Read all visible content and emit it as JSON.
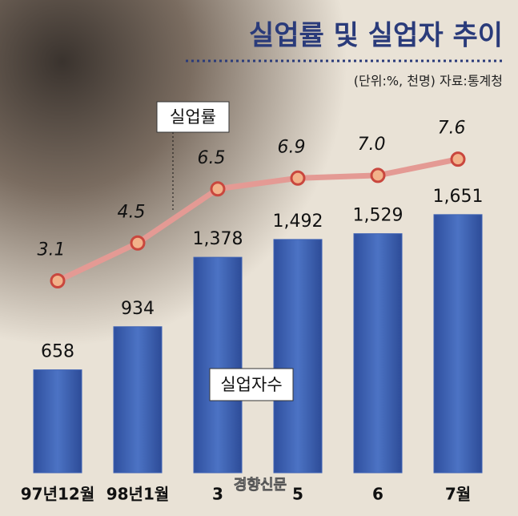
{
  "chart_data": {
    "type": "bar",
    "title": "실업률 및 실업자 추이",
    "subtitle": "(단위:%, 천명) 자료:통계청",
    "source_mark": "경향신문",
    "categories": [
      "97년12월",
      "98년1월",
      "3",
      "5",
      "6",
      "7월"
    ],
    "series": [
      {
        "name": "실업자수",
        "type": "bar",
        "color": "#3f63b5",
        "values": [
          658,
          934,
          1378,
          1492,
          1529,
          1651
        ],
        "value_labels": [
          "658",
          "934",
          "1,378",
          "1,492",
          "1,529",
          "1,651"
        ]
      },
      {
        "name": "실업률",
        "type": "line",
        "axis": "y2",
        "color": "#e49a94",
        "values": [
          3.1,
          4.5,
          6.5,
          6.9,
          7.0,
          7.6
        ],
        "value_labels": [
          "3.1",
          "4.5",
          "6.5",
          "6.9",
          "7.0",
          "7.6"
        ]
      }
    ],
    "ylim": [
      0,
      2870
    ],
    "y2lim": [
      -4,
      12.6
    ]
  }
}
